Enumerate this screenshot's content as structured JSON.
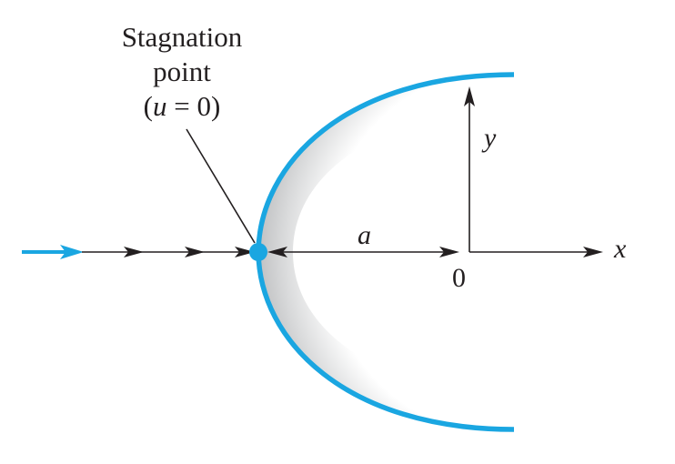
{
  "annotation": {
    "line1": "Stagnation",
    "line2": "point",
    "condition_open": "(",
    "condition_var": "u",
    "condition_rest": " = 0)"
  },
  "labels": {
    "distance": "a",
    "x_axis": "x",
    "y_axis": "y",
    "origin": "0"
  },
  "colors": {
    "flow": "#1aa6e1",
    "body_edge": "#1aa6e1",
    "lines": "#231f20",
    "shade_dark": "#b7b8ba",
    "shade_light": "#ffffff"
  }
}
